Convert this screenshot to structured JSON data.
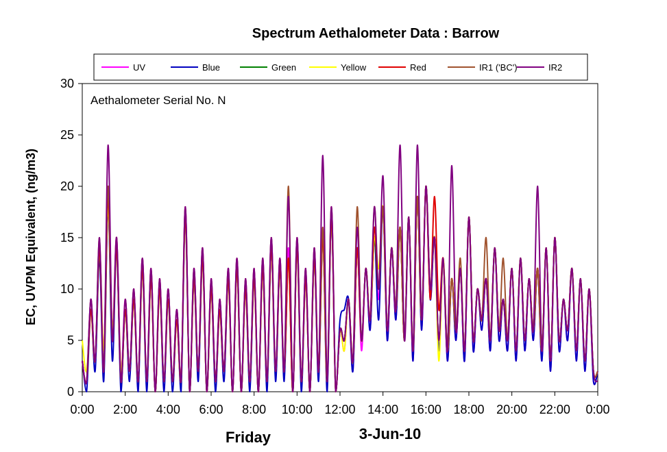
{
  "chart_data": {
    "type": "line",
    "title": "Spectrum Aethalometer Data  :  Barrow",
    "ylabel": "EC, UVPM  Equivalent,  (ng/m3)",
    "annotation": "Aethalometer  Serial No. N",
    "footer_left": "Friday",
    "footer_date": "3-Jun-10",
    "ylim": [
      0,
      30
    ],
    "yticks": [
      0,
      5,
      10,
      15,
      20,
      25,
      30
    ],
    "xlim": [
      0,
      24
    ],
    "xticks": [
      "0:00",
      "2:00",
      "4:00",
      "6:00",
      "8:00",
      "10:00",
      "12:00",
      "14:00",
      "16:00",
      "18:00",
      "20:00",
      "22:00",
      "0:00"
    ],
    "grid": false,
    "legend_position": "top",
    "x": [
      0.0,
      0.2,
      0.4,
      0.6,
      0.8,
      1.0,
      1.2,
      1.4,
      1.6,
      1.8,
      2.0,
      2.2,
      2.4,
      2.6,
      2.8,
      3.0,
      3.2,
      3.4,
      3.6,
      3.8,
      4.0,
      4.2,
      4.4,
      4.6,
      4.8,
      5.0,
      5.2,
      5.4,
      5.6,
      5.8,
      6.0,
      6.2,
      6.4,
      6.6,
      6.8,
      7.0,
      7.2,
      7.4,
      7.6,
      7.8,
      8.0,
      8.2,
      8.4,
      8.6,
      8.8,
      9.0,
      9.2,
      9.4,
      9.6,
      9.8,
      10.0,
      10.2,
      10.4,
      10.6,
      10.8,
      11.0,
      11.2,
      11.4,
      11.6,
      11.8,
      12.0,
      12.2,
      12.4,
      12.6,
      12.8,
      13.0,
      13.2,
      13.4,
      13.6,
      13.8,
      14.0,
      14.2,
      14.4,
      14.6,
      14.8,
      15.0,
      15.2,
      15.4,
      15.6,
      15.8,
      16.0,
      16.2,
      16.4,
      16.6,
      16.8,
      17.0,
      17.2,
      17.4,
      17.6,
      17.8,
      18.0,
      18.2,
      18.4,
      18.6,
      18.8,
      19.0,
      19.2,
      19.4,
      19.6,
      19.8,
      20.0,
      20.2,
      20.4,
      20.6,
      20.8,
      21.0,
      21.2,
      21.4,
      21.6,
      21.8,
      22.0,
      22.2,
      22.4,
      22.6,
      22.8,
      23.0,
      23.2,
      23.4,
      23.6,
      23.8,
      24.0
    ],
    "series": [
      {
        "name": "UV",
        "color": "#ff00ff",
        "values": [
          3,
          1,
          9,
          3,
          14,
          4,
          19,
          6,
          15,
          2,
          9,
          2,
          10,
          1,
          13,
          1,
          12,
          0,
          11,
          1,
          10,
          1,
          8,
          1,
          18,
          0,
          12,
          2,
          14,
          0,
          11,
          1,
          9,
          2,
          12,
          0,
          13,
          0,
          11,
          1,
          12,
          0,
          13,
          1,
          15,
          2,
          13,
          2,
          14,
          0,
          15,
          1,
          12,
          0,
          14,
          2,
          16,
          1,
          18,
          0,
          6,
          4,
          9,
          2,
          14,
          4,
          12,
          6,
          15,
          9,
          18,
          5,
          14,
          7,
          16,
          5,
          17,
          3,
          19,
          6,
          20,
          9,
          15,
          4,
          13,
          3,
          11,
          5,
          12,
          3,
          17,
          4,
          10,
          6,
          11,
          4,
          14,
          5,
          9,
          4,
          12,
          3,
          13,
          4,
          11,
          5,
          12,
          3,
          14,
          2,
          15,
          4,
          9,
          5,
          12,
          3,
          11,
          2,
          10,
          1,
          2
        ]
      },
      {
        "name": "Blue",
        "color": "#0000c0",
        "values": [
          3,
          0,
          8,
          2,
          13,
          1,
          18,
          3,
          14,
          0,
          8,
          1,
          9,
          0,
          12,
          0,
          11,
          0,
          10,
          0,
          9,
          0,
          7,
          0,
          17,
          0,
          11,
          1,
          13,
          0,
          10,
          0,
          8,
          1,
          11,
          0,
          12,
          0,
          10,
          0,
          11,
          0,
          12,
          0,
          14,
          1,
          12,
          1,
          13,
          0,
          14,
          0,
          11,
          0,
          13,
          1,
          15,
          0,
          17,
          0,
          7,
          8,
          9,
          2,
          14,
          5,
          12,
          6,
          15,
          7,
          18,
          5,
          14,
          7,
          16,
          5,
          17,
          3,
          19,
          6,
          20,
          9,
          15,
          4,
          13,
          3,
          11,
          5,
          12,
          3,
          17,
          4,
          10,
          6,
          11,
          4,
          14,
          5,
          9,
          4,
          12,
          3,
          13,
          4,
          11,
          5,
          12,
          3,
          14,
          2,
          15,
          4,
          9,
          5,
          12,
          3,
          11,
          2,
          10,
          1,
          2
        ]
      },
      {
        "name": "Green",
        "color": "#008000",
        "values": [
          3,
          1,
          8,
          3,
          14,
          2,
          19,
          5,
          14,
          1,
          8,
          2,
          9,
          1,
          12,
          1,
          11,
          0,
          10,
          1,
          9,
          1,
          7,
          1,
          17,
          0,
          11,
          2,
          13,
          0,
          10,
          1,
          8,
          2,
          11,
          0,
          12,
          0,
          10,
          1,
          11,
          0,
          12,
          1,
          14,
          2,
          12,
          2,
          13,
          0,
          14,
          1,
          11,
          0,
          13,
          2,
          15,
          1,
          17,
          0,
          6,
          5,
          9,
          3,
          14,
          5,
          12,
          7,
          15,
          10,
          18,
          6,
          14,
          8,
          16,
          5,
          17,
          4,
          19,
          7,
          20,
          10,
          15,
          5,
          13,
          4,
          11,
          6,
          12,
          4,
          17,
          5,
          10,
          7,
          11,
          5,
          14,
          6,
          9,
          5,
          12,
          4,
          13,
          5,
          11,
          6,
          12,
          4,
          14,
          3,
          15,
          5,
          9,
          6,
          12,
          4,
          11,
          3,
          10,
          2,
          2
        ]
      },
      {
        "name": "Yellow",
        "color": "#ffff00",
        "values": [
          5,
          2,
          8,
          3,
          14,
          4,
          18,
          6,
          14,
          2,
          8,
          2,
          9,
          1,
          12,
          1,
          11,
          0,
          10,
          1,
          9,
          1,
          7,
          1,
          17,
          0,
          11,
          2,
          13,
          0,
          10,
          1,
          8,
          2,
          11,
          0,
          12,
          0,
          10,
          1,
          11,
          0,
          12,
          1,
          14,
          2,
          12,
          2,
          13,
          0,
          14,
          1,
          11,
          0,
          13,
          2,
          15,
          1,
          17,
          0,
          6,
          4,
          9,
          3,
          14,
          5,
          12,
          7,
          15,
          12,
          18,
          6,
          14,
          8,
          16,
          5,
          17,
          4,
          19,
          7,
          20,
          10,
          15,
          3,
          13,
          4,
          11,
          6,
          12,
          4,
          17,
          5,
          10,
          7,
          11,
          5,
          14,
          6,
          9,
          5,
          12,
          4,
          13,
          5,
          11,
          6,
          12,
          4,
          14,
          3,
          15,
          5,
          9,
          6,
          12,
          4,
          11,
          3,
          10,
          2,
          2
        ]
      },
      {
        "name": "Red",
        "color": "#e00000",
        "values": [
          3,
          1,
          8,
          3,
          14,
          2,
          19,
          5,
          14,
          1,
          8,
          2,
          9,
          1,
          12,
          1,
          11,
          0,
          10,
          1,
          9,
          1,
          7,
          1,
          17,
          0,
          11,
          2,
          13,
          0,
          10,
          1,
          8,
          2,
          11,
          0,
          12,
          0,
          10,
          1,
          11,
          0,
          12,
          1,
          14,
          2,
          12,
          2,
          13,
          0,
          14,
          1,
          11,
          0,
          13,
          2,
          15,
          1,
          17,
          0,
          6,
          5,
          9,
          3,
          14,
          5,
          12,
          7,
          16,
          10,
          18,
          6,
          14,
          8,
          16,
          5,
          17,
          4,
          19,
          7,
          20,
          9,
          19,
          8,
          13,
          4,
          11,
          6,
          12,
          4,
          17,
          5,
          10,
          7,
          11,
          5,
          14,
          6,
          9,
          5,
          12,
          4,
          13,
          5,
          11,
          6,
          12,
          4,
          14,
          3,
          15,
          5,
          9,
          6,
          12,
          4,
          11,
          3,
          10,
          2,
          2
        ]
      },
      {
        "name": "IR1 ('BC')",
        "color": "#a0522d",
        "values": [
          3,
          1,
          9,
          3,
          15,
          2,
          20,
          5,
          15,
          1,
          9,
          2,
          10,
          1,
          13,
          1,
          12,
          0,
          11,
          1,
          10,
          1,
          8,
          1,
          18,
          0,
          12,
          2,
          14,
          0,
          11,
          1,
          9,
          2,
          12,
          0,
          13,
          0,
          11,
          1,
          12,
          0,
          13,
          1,
          15,
          2,
          13,
          2,
          20,
          0,
          15,
          1,
          12,
          0,
          14,
          2,
          16,
          1,
          18,
          0,
          6,
          5,
          9,
          3,
          18,
          5,
          12,
          7,
          18,
          10,
          18,
          6,
          14,
          8,
          16,
          5,
          17,
          4,
          19,
          7,
          20,
          10,
          15,
          5,
          13,
          4,
          11,
          6,
          13,
          4,
          17,
          5,
          10,
          7,
          15,
          5,
          14,
          6,
          13,
          5,
          12,
          4,
          13,
          5,
          11,
          6,
          12,
          4,
          14,
          3,
          15,
          5,
          9,
          6,
          12,
          4,
          11,
          3,
          10,
          2,
          2
        ]
      },
      {
        "name": "IR2",
        "color": "#800080",
        "values": [
          3,
          1,
          9,
          3,
          15,
          2,
          24,
          5,
          15,
          1,
          9,
          2,
          10,
          1,
          13,
          1,
          12,
          0,
          11,
          1,
          10,
          1,
          8,
          1,
          18,
          0,
          12,
          2,
          14,
          0,
          11,
          1,
          9,
          2,
          12,
          0,
          13,
          0,
          11,
          1,
          12,
          0,
          13,
          1,
          15,
          2,
          13,
          2,
          19,
          0,
          15,
          1,
          12,
          0,
          14,
          2,
          23,
          1,
          18,
          0,
          6,
          5,
          9,
          3,
          16,
          5,
          12,
          7,
          18,
          10,
          21,
          6,
          14,
          8,
          24,
          5,
          17,
          4,
          24,
          7,
          20,
          10,
          15,
          5,
          13,
          4,
          22,
          6,
          12,
          4,
          17,
          5,
          10,
          7,
          11,
          5,
          14,
          6,
          9,
          5,
          12,
          4,
          13,
          5,
          11,
          6,
          20,
          4,
          14,
          3,
          15,
          5,
          9,
          6,
          12,
          4,
          11,
          3,
          10,
          2,
          1
        ]
      }
    ]
  }
}
